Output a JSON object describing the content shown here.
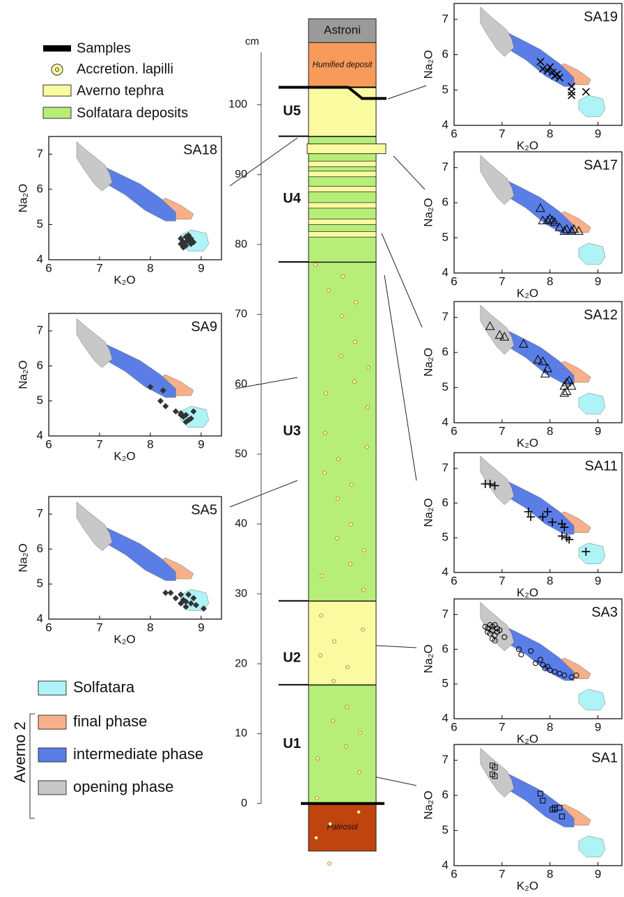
{
  "legend": {
    "items": [
      "Samples",
      "Accretion. lapilli",
      "Averno tephra",
      "Solfatara deposits"
    ]
  },
  "fields": {
    "group": "Averno 2",
    "items": [
      {
        "name": "Solfatara",
        "color": "#aef4f6"
      },
      {
        "name": "final phase",
        "color": "#f7b08a"
      },
      {
        "name": "intermediate phase",
        "color": "#5a7ee6"
      },
      {
        "name": "opening phase",
        "color": "#c8c8c8"
      }
    ]
  },
  "chart_data": [
    {
      "type": "column",
      "ylabel": "cm",
      "ylim": [
        -6.8,
        112.3
      ],
      "yticks": [
        0,
        10,
        20,
        30,
        40,
        50,
        60,
        70,
        80,
        90,
        100
      ],
      "units": [
        {
          "name": "U1",
          "bottom": 0,
          "top": 17,
          "color": "#b6ee78"
        },
        {
          "name": "U2",
          "bottom": 17,
          "top": 29,
          "color": "#fafaa0"
        },
        {
          "name": "U3",
          "bottom": 29,
          "top": 77.5,
          "color": "#b6ee78"
        },
        {
          "name": "U4",
          "bottom": 77.5,
          "top": 95.5,
          "color": "#b6ee78"
        },
        {
          "name": "U5",
          "bottom": 95.5,
          "top": 102.5,
          "color": "#fafaa0"
        }
      ],
      "layers": [
        {
          "name": "Paleosol",
          "bottom": -6.8,
          "top": 0,
          "color": "#c0440e"
        },
        {
          "name": "Humified deposit",
          "bottom": 102.5,
          "top": 108.9,
          "color": "#f89a5a"
        },
        {
          "name": "Astroni",
          "bottom": 108.9,
          "top": 112.3,
          "color": "#9a9a9a"
        }
      ]
    },
    {
      "type": "scatter",
      "title": "SA19",
      "xlabel": "K₂O",
      "ylabel": "Na₂O",
      "xlim": [
        6,
        9.5
      ],
      "ylim": [
        4,
        7.45
      ],
      "xticks": [
        6,
        7,
        8,
        9
      ],
      "yticks": [
        4,
        5,
        6,
        7
      ],
      "series": [
        {
          "marker": "x",
          "x": [
            7.8,
            7.85,
            7.95,
            8.0,
            8.05,
            8.1,
            8.15,
            8.2,
            8.45,
            8.45,
            8.45,
            8.75
          ],
          "values": [
            5.8,
            5.6,
            5.55,
            5.65,
            5.5,
            5.4,
            5.45,
            5.35,
            5.1,
            4.95,
            4.85,
            4.95
          ]
        }
      ]
    },
    {
      "type": "scatter",
      "title": "SA17",
      "xlabel": "K₂O",
      "ylabel": "Na₂O",
      "xlim": [
        6,
        9.5
      ],
      "ylim": [
        4,
        7.45
      ],
      "xticks": [
        6,
        7,
        8,
        9
      ],
      "yticks": [
        4,
        5,
        6,
        7
      ],
      "series": [
        {
          "marker": "triangle",
          "x": [
            7.8,
            7.85,
            7.95,
            8.0,
            8.05,
            8.1,
            8.2,
            8.3,
            8.35,
            8.45,
            8.5,
            8.6
          ],
          "values": [
            5.85,
            5.5,
            5.5,
            5.55,
            5.5,
            5.45,
            5.3,
            5.2,
            5.25,
            5.2,
            5.25,
            5.2
          ]
        }
      ]
    },
    {
      "type": "scatter",
      "title": "SA12",
      "xlabel": "K₂O",
      "ylabel": "Na₂O",
      "xlim": [
        6,
        9.5
      ],
      "ylim": [
        4,
        7.45
      ],
      "xticks": [
        6,
        7,
        8,
        9
      ],
      "yticks": [
        4,
        5,
        6,
        7
      ],
      "series": [
        {
          "marker": "triangle",
          "x": [
            6.75,
            6.95,
            7.05,
            7.45,
            7.75,
            7.85,
            7.95,
            7.9,
            8.3,
            8.35,
            8.4,
            8.35,
            8.3,
            8.45
          ],
          "values": [
            6.75,
            6.5,
            6.45,
            6.25,
            5.8,
            5.75,
            5.55,
            5.4,
            5.05,
            5.15,
            5.2,
            4.9,
            4.85,
            5.05
          ]
        }
      ]
    },
    {
      "type": "scatter",
      "title": "SA11",
      "xlabel": "K₂O",
      "ylabel": "Na₂O",
      "xlim": [
        6,
        9.5
      ],
      "ylim": [
        4,
        7.45
      ],
      "xticks": [
        6,
        7,
        8,
        9
      ],
      "yticks": [
        4,
        5,
        6,
        7
      ],
      "series": [
        {
          "marker": "plus",
          "x": [
            6.65,
            6.75,
            6.85,
            7.55,
            7.6,
            7.85,
            7.95,
            8.05,
            8.25,
            8.3,
            8.25,
            8.35,
            8.4,
            8.75
          ],
          "values": [
            6.55,
            6.55,
            6.5,
            5.75,
            5.6,
            5.6,
            5.75,
            5.45,
            5.4,
            5.3,
            5.05,
            5.0,
            4.95,
            4.6
          ]
        }
      ]
    },
    {
      "type": "scatter",
      "title": "SA3",
      "xlabel": "K₂O",
      "ylabel": "Na₂O",
      "xlim": [
        6,
        9.5
      ],
      "ylim": [
        4,
        7.45
      ],
      "xticks": [
        6,
        7,
        8,
        9
      ],
      "yticks": [
        4,
        5,
        6,
        7
      ],
      "series": [
        {
          "marker": "circle",
          "x": [
            6.65,
            6.7,
            6.75,
            6.8,
            6.85,
            6.9,
            6.7,
            6.75,
            6.8,
            6.85,
            6.9,
            6.8,
            6.85,
            6.95,
            7.05,
            7.35,
            7.4,
            7.6,
            7.7,
            7.8,
            7.85,
            7.9,
            7.95,
            8.0,
            8.1,
            8.2,
            8.3,
            8.45,
            8.55
          ],
          "values": [
            6.65,
            6.6,
            6.7,
            6.65,
            6.7,
            6.6,
            6.5,
            6.45,
            6.55,
            6.4,
            6.5,
            6.3,
            6.25,
            6.55,
            6.35,
            6.0,
            5.85,
            5.95,
            5.6,
            5.7,
            5.55,
            5.45,
            5.5,
            5.4,
            5.35,
            5.3,
            5.25,
            5.2,
            5.25
          ]
        }
      ]
    },
    {
      "type": "scatter",
      "title": "SA1",
      "xlabel": "K₂O",
      "ylabel": "Na₂O",
      "xlim": [
        6,
        9.5
      ],
      "ylim": [
        4,
        7.45
      ],
      "xticks": [
        6,
        7,
        8,
        9
      ],
      "yticks": [
        4,
        5,
        6,
        7
      ],
      "series": [
        {
          "marker": "square",
          "x": [
            6.8,
            6.85,
            6.8,
            6.85,
            7.8,
            7.85,
            8.05,
            8.1,
            8.2,
            8.25,
            8.1
          ],
          "values": [
            6.85,
            6.8,
            6.6,
            6.55,
            6.05,
            5.85,
            5.6,
            5.65,
            5.65,
            5.4,
            5.6
          ]
        }
      ]
    },
    {
      "type": "scatter",
      "title": "SA18",
      "xlabel": "K₂O",
      "ylabel": "Na₂O",
      "xlim": [
        6,
        9.4
      ],
      "ylim": [
        4,
        7.5
      ],
      "xticks": [
        6,
        7,
        8,
        9
      ],
      "yticks": [
        4,
        5,
        6,
        7
      ],
      "series": [
        {
          "marker": "diamond",
          "x": [
            8.6,
            8.65,
            8.7,
            8.75,
            8.8,
            8.85,
            8.6,
            8.65,
            8.7,
            8.75,
            8.8,
            8.65,
            8.7,
            8.75
          ],
          "values": [
            4.6,
            4.5,
            4.65,
            4.55,
            4.6,
            4.5,
            4.45,
            4.4,
            4.5,
            4.7,
            4.45,
            4.35,
            4.4,
            4.6
          ]
        }
      ]
    },
    {
      "type": "scatter",
      "title": "SA9",
      "xlabel": "K₂O",
      "ylabel": "Na₂O",
      "xlim": [
        6,
        9.4
      ],
      "ylim": [
        4,
        7.5
      ],
      "xticks": [
        6,
        7,
        8,
        9
      ],
      "yticks": [
        4,
        5,
        6,
        7
      ],
      "series": [
        {
          "marker": "diamond",
          "x": [
            8.0,
            8.25,
            8.3,
            8.2,
            8.5,
            8.6,
            8.65,
            8.7,
            8.75,
            8.8,
            8.85,
            8.7,
            8.6
          ],
          "values": [
            5.4,
            5.3,
            4.85,
            5.0,
            4.7,
            4.65,
            4.55,
            4.6,
            4.45,
            4.5,
            4.7,
            4.4,
            4.6
          ]
        }
      ]
    },
    {
      "type": "scatter",
      "title": "SA5",
      "xlabel": "K₂O",
      "ylabel": "Na₂O",
      "xlim": [
        6,
        9.4
      ],
      "ylim": [
        4,
        7.5
      ],
      "xticks": [
        6,
        7,
        8,
        9
      ],
      "yticks": [
        4,
        5,
        6,
        7
      ],
      "series": [
        {
          "marker": "diamond",
          "x": [
            8.3,
            8.4,
            8.5,
            8.6,
            8.65,
            8.7,
            8.75,
            8.8,
            8.85,
            8.9,
            9.05,
            8.6,
            8.7
          ],
          "values": [
            4.75,
            4.75,
            4.6,
            4.7,
            4.55,
            4.5,
            4.7,
            4.45,
            4.6,
            4.4,
            4.3,
            4.45,
            4.35
          ]
        }
      ]
    }
  ]
}
